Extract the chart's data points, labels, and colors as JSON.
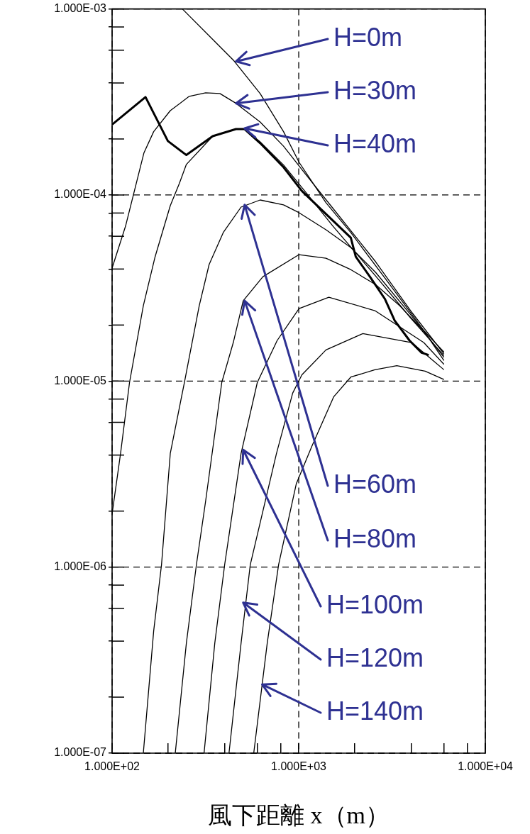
{
  "chart_data": {
    "type": "line",
    "xlabel": "風下距離 x（m）",
    "log": "xy",
    "grid": true,
    "legend": false,
    "marker": "none",
    "line_style": "solid",
    "xlim": [
      100,
      10000
    ],
    "ylim": [
      1e-07,
      0.001
    ],
    "xticks": [
      {
        "value": 100,
        "label": "1.000E+02"
      },
      {
        "value": 200,
        "label": null
      },
      {
        "value": 400,
        "label": null
      },
      {
        "value": 600,
        "label": null
      },
      {
        "value": 800,
        "label": null
      },
      {
        "value": 1000,
        "label": "1.000E+03"
      },
      {
        "value": 2000,
        "label": null
      },
      {
        "value": 4000,
        "label": null
      },
      {
        "value": 6000,
        "label": null
      },
      {
        "value": 8000,
        "label": null
      },
      {
        "value": 10000,
        "label": "1.000E+04"
      }
    ],
    "yticks": [
      {
        "value": 1e-07,
        "label": "1.000E-07"
      },
      {
        "value": 2e-07,
        "label": null
      },
      {
        "value": 4e-07,
        "label": null
      },
      {
        "value": 6e-07,
        "label": null
      },
      {
        "value": 8e-07,
        "label": null
      },
      {
        "value": 1e-06,
        "label": "1.000E-06"
      },
      {
        "value": 2e-06,
        "label": null
      },
      {
        "value": 4e-06,
        "label": null
      },
      {
        "value": 6e-06,
        "label": null
      },
      {
        "value": 8e-06,
        "label": null
      },
      {
        "value": 1e-05,
        "label": "1.000E-05"
      },
      {
        "value": 2e-05,
        "label": null
      },
      {
        "value": 4e-05,
        "label": null
      },
      {
        "value": 6e-05,
        "label": null
      },
      {
        "value": 8e-05,
        "label": null
      },
      {
        "value": 0.0001,
        "label": "1.000E-04"
      },
      {
        "value": 0.0002,
        "label": null
      },
      {
        "value": 0.0004,
        "label": null
      },
      {
        "value": 0.0006,
        "label": null
      },
      {
        "value": 0.0008,
        "label": null
      },
      {
        "value": 0.001,
        "label": "1.000E-03"
      }
    ],
    "series": [
      {
        "color": "#000000",
        "x": [
          238,
          355,
          450,
          621,
          829,
          1004,
          1400,
          1901,
          2994,
          4676,
          6000
        ],
        "values": [
          0.001,
          0.000668,
          0.000526,
          0.000351,
          0.000219,
          0.00015,
          9.08e-05,
          6.28e-05,
          3.42e-05,
          1.87e-05,
          1.43e-05
        ]
      },
      {
        "color": "#000000",
        "x": [
          100,
          118,
          148,
          167,
          205,
          259,
          317,
          378,
          461,
          621,
          829,
          1077,
          1528,
          2581,
          3996,
          6000
        ],
        "values": [
          4.05e-05,
          6.79e-05,
          0.000168,
          0.000219,
          0.000284,
          0.000339,
          0.000354,
          0.000351,
          0.000311,
          0.000247,
          0.000183,
          0.000131,
          8.46e-05,
          4.38e-05,
          2.37e-05,
          1.4e-05
        ]
      },
      {
        "color": "#000000",
        "x": [
          100,
          111,
          124,
          147,
          170,
          205,
          229,
          250,
          346,
          461,
          513,
          621,
          829,
          1077,
          1528,
          2581,
          3996,
          6000
        ],
        "values": [
          1.93e-06,
          4.08e-06,
          9.83e-06,
          2.54e-05,
          4.66e-05,
          8.76e-05,
          0.000115,
          0.000146,
          0.000207,
          0.000226,
          0.000226,
          0.000193,
          0.000145,
          0.000105,
          6.79e-05,
          3.67e-05,
          2.17e-05,
          1.37e-05
        ]
      },
      {
        "color": "#000000",
        "x": [
          100,
          151,
          199,
          250,
          346,
          461,
          513,
          621,
          829,
          1040,
          1901,
          2021,
          2406,
          2891,
          3268,
          3926,
          4555,
          4972
        ],
        "values": [
          0.000239,
          0.000336,
          0.000195,
          0.000164,
          0.000207,
          0.000226,
          0.000226,
          0.00019,
          0.000141,
          0.000105,
          5.9e-05,
          4.66e-05,
          3.64e-05,
          2.77e-05,
          2.11e-05,
          1.65e-05,
          1.42e-05,
          1.38e-05
        ]
      },
      {
        "color": "#000000",
        "x": [
          147,
          167,
          184,
          205,
          244,
          293,
          331,
          394,
          491,
          621,
          829,
          1004,
          1400,
          1901,
          2581,
          3996,
          6000
        ],
        "values": [
          1e-07,
          4.53e-07,
          1.03e-06,
          4.08e-06,
          9.83e-06,
          2.54e-05,
          4.23e-05,
          6.28e-05,
          8.61e-05,
          9.4e-05,
          8.85e-05,
          8.03e-05,
          6.5e-05,
          5.22e-05,
          3.84e-05,
          2.26e-05,
          1.34e-05
        ]
      },
      {
        "color": "#000000",
        "x": [
          218,
          250,
          283,
          317,
          387,
          446,
          504,
          643,
          1004,
          1400,
          1901,
          2581,
          3474,
          4759,
          6000
        ],
        "values": [
          1e-07,
          3.9e-07,
          1.03e-06,
          2.26e-06,
          9.83e-06,
          1.61e-05,
          2.7e-05,
          3.64e-05,
          4.78e-05,
          4.57e-05,
          3.97e-05,
          3.3e-05,
          2.54e-05,
          1.82e-05,
          1.29e-05
        ]
      },
      {
        "color": "#000000",
        "x": [
          311,
          355,
          401,
          491,
          600,
          766,
          1004,
          1450,
          2559,
          4676,
          6000
        ],
        "values": [
          1e-07,
          3.9e-07,
          1.03e-06,
          4.08e-06,
          9.83e-06,
          1.65e-05,
          2.45e-05,
          2.82e-05,
          2.39e-05,
          1.61e-05,
          1.23e-05
        ]
      },
      {
        "color": "#000000",
        "x": [
          423,
          491,
          550,
          760,
          928,
          1040,
          1400,
          2206,
          4030,
          6000
        ],
        "values": [
          1e-07,
          3.9e-07,
          1.03e-06,
          4.08e-06,
          8.61e-06,
          1.08e-05,
          1.47e-05,
          1.8e-05,
          1.61e-05,
          1.15e-05
        ]
      },
      {
        "color": "#000000",
        "x": [
          574,
          678,
          780,
          970,
          1176,
          1541,
          1901,
          2559,
          3354,
          4759,
          6000
        ],
        "values": [
          1e-07,
          3.9e-07,
          1.03e-06,
          2.8e-06,
          4.46e-06,
          8.24e-06,
          1.05e-05,
          1.15e-05,
          1.21e-05,
          1.13e-05,
          1.02e-05
        ]
      }
    ],
    "annotations": [
      {
        "text": "H=0m",
        "x": 461,
        "y": 0.000522
      },
      {
        "text": "H=30m",
        "x": 461,
        "y": 0.000311
      },
      {
        "text": "H=40m",
        "x": 513,
        "y": 0.000228
      },
      {
        "text": "H=60m",
        "x": 513,
        "y": 8.85e-05
      },
      {
        "text": "H=80m",
        "x": 513,
        "y": 2.7e-05
      },
      {
        "text": "H=100m",
        "x": 504,
        "y": 4.27e-06
      },
      {
        "text": "H=120m",
        "x": 504,
        "y": 6.44e-07
      },
      {
        "text": "H=140m",
        "x": 637,
        "y": 2.34e-07
      }
    ]
  }
}
